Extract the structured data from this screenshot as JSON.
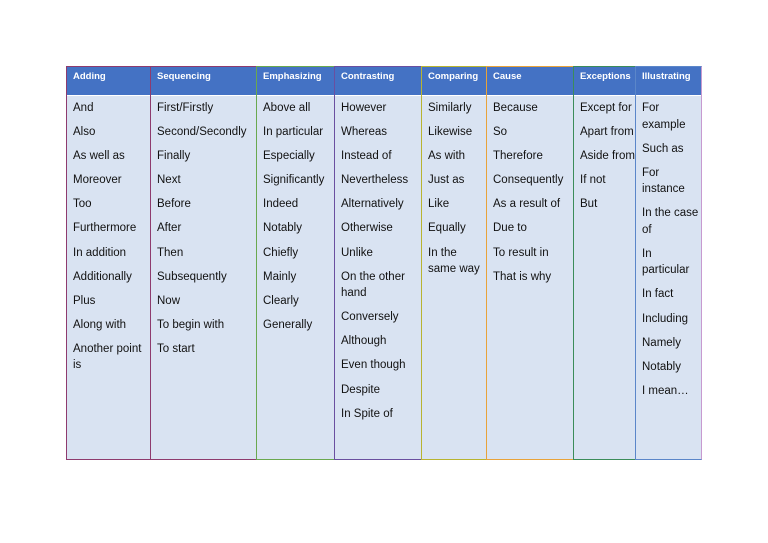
{
  "columns": [
    {
      "key": "adding",
      "header": "Adding",
      "border": "#8e3b6e",
      "width": 84,
      "items": [
        "And",
        "Also",
        "As well as",
        "Moreover",
        "Too",
        "Furthermore",
        "In addition",
        "Additionally",
        "Plus",
        "Along with",
        "Another point is"
      ]
    },
    {
      "key": "sequencing",
      "header": "Sequencing",
      "border": "#8e3b6e",
      "width": 106,
      "items": [
        "First/Firstly",
        "Second/Secondly",
        "Finally",
        "Next",
        "Before",
        "After",
        "Then",
        "Subsequently",
        "Now",
        "To begin with",
        "To start"
      ]
    },
    {
      "key": "emphasizing",
      "header": "Emphasizing",
      "border": "#6aa84f",
      "width": 78,
      "items": [
        "Above all",
        "In particular",
        "Especially",
        "Significantly",
        "Indeed",
        "Notably",
        "Chiefly",
        "Mainly",
        "Clearly",
        "Generally"
      ]
    },
    {
      "key": "contrasting",
      "header": "Contrasting",
      "border": "#6a4fa0",
      "width": 87,
      "items": [
        "However",
        "Whereas",
        "Instead of",
        "Nevertheless",
        "Alternatively",
        "Otherwise",
        "Unlike",
        "On the other hand",
        "Conversely",
        "Although",
        "Even though",
        "Despite",
        "In Spite of"
      ]
    },
    {
      "key": "comparing",
      "header": "Comparing",
      "border": "#b8b430",
      "width": 65,
      "items": [
        "Similarly",
        "Likewise",
        "As with",
        "Just as",
        "Like",
        "Equally",
        "In the same way"
      ]
    },
    {
      "key": "cause",
      "header": "Cause",
      "border": "#e8a33a",
      "width": 87,
      "items": [
        "Because",
        "So",
        "Therefore",
        "Consequently",
        "As a result of",
        "Due to",
        "To result in",
        "That is why"
      ]
    },
    {
      "key": "exceptions",
      "header": "Exceptions",
      "border": "#3b8c5a",
      "width": 62,
      "items": [
        "Except for",
        "Apart from",
        "Aside from",
        "If not",
        "But"
      ]
    },
    {
      "key": "illustrating",
      "header": "Illustrating",
      "border": "#5b86c9",
      "width": 67,
      "items": [
        "For example",
        "Such as",
        "For instance",
        "In the case of",
        "In particular",
        "In fact",
        "Including",
        "Namely",
        "Notably",
        "I mean…"
      ]
    }
  ]
}
